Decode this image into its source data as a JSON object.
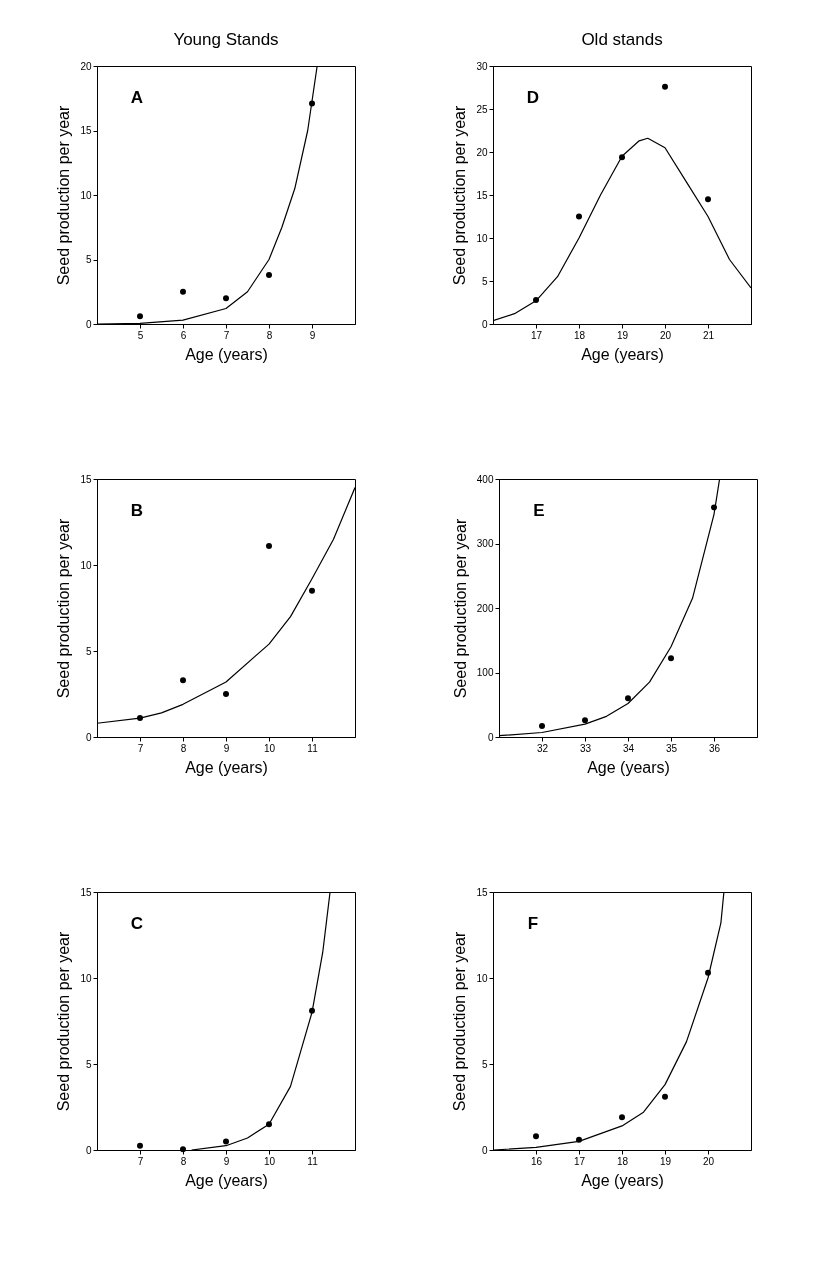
{
  "chart_data": [
    {
      "type": "scatter",
      "title": "Young Stands",
      "xlabel": "Age (years)",
      "ylabel": "Seed production per year",
      "annotations": [
        "A"
      ],
      "grid": false,
      "legend": false,
      "xlim": [
        4,
        10
      ],
      "xticks": [
        5,
        6,
        7,
        8,
        9
      ],
      "ylim": [
        0,
        20
      ],
      "yticks": [
        0,
        5,
        10,
        15,
        20
      ],
      "series": [
        {
          "color": "#000000",
          "marker": "circle",
          "x": [
            5,
            6,
            7,
            8,
            9
          ],
          "values": [
            0.6,
            2.5,
            2.0,
            3.8,
            17.1
          ]
        },
        {
          "type": "line",
          "color": "#000000",
          "x": [
            4,
            5,
            6,
            7,
            7.5,
            8,
            8.3,
            8.6,
            8.9,
            9.12
          ],
          "values": [
            0,
            0.05,
            0.3,
            1.2,
            2.5,
            5,
            7.5,
            10.5,
            15,
            20
          ]
        }
      ]
    },
    {
      "type": "scatter",
      "title": "Old stands",
      "xlabel": "Age (years)",
      "ylabel": "Seed production per year",
      "annotations": [
        "D"
      ],
      "grid": false,
      "legend": false,
      "xlim": [
        16,
        22
      ],
      "xticks": [
        17,
        18,
        19,
        20,
        21
      ],
      "ylim": [
        0,
        30
      ],
      "yticks": [
        0,
        5,
        10,
        15,
        20,
        25,
        30
      ],
      "series": [
        {
          "color": "#000000",
          "marker": "circle",
          "x": [
            17,
            18,
            19,
            20,
            21
          ],
          "values": [
            2.8,
            12.5,
            19.4,
            27.6,
            14.5
          ]
        },
        {
          "type": "line",
          "color": "#000000",
          "x": [
            16,
            16.5,
            17,
            17.5,
            18,
            18.5,
            19,
            19.4,
            19.6,
            20,
            20.5,
            21,
            21.5,
            22
          ],
          "values": [
            0.4,
            1.2,
            2.7,
            5.5,
            10,
            15,
            19.5,
            21.3,
            21.6,
            20.5,
            16.5,
            12.5,
            7.5,
            4.2
          ]
        }
      ]
    },
    {
      "type": "scatter",
      "xlabel": "Age (years)",
      "ylabel": "Seed production per year",
      "annotations": [
        "B"
      ],
      "grid": false,
      "legend": false,
      "xlim": [
        6,
        12
      ],
      "xticks": [
        7,
        8,
        9,
        10,
        11
      ],
      "ylim": [
        0,
        15
      ],
      "yticks": [
        0,
        5,
        10,
        15
      ],
      "series": [
        {
          "color": "#000000",
          "marker": "circle",
          "x": [
            7,
            8,
            9,
            10,
            11
          ],
          "values": [
            1.1,
            3.3,
            2.5,
            11.1,
            8.5
          ]
        },
        {
          "type": "line",
          "color": "#000000",
          "x": [
            6,
            7,
            7.5,
            8,
            9,
            10,
            10.5,
            11,
            11.5,
            12
          ],
          "values": [
            0.8,
            1.1,
            1.4,
            1.9,
            3.2,
            5.4,
            7,
            9.2,
            11.5,
            14.5
          ]
        }
      ]
    },
    {
      "type": "scatter",
      "xlabel": "Age (years)",
      "ylabel": "Seed production per year",
      "annotations": [
        "E"
      ],
      "grid": false,
      "legend": false,
      "xlim": [
        31,
        37
      ],
      "xticks": [
        32,
        33,
        34,
        35,
        36
      ],
      "ylim": [
        0,
        400
      ],
      "yticks": [
        0,
        100,
        200,
        300,
        400
      ],
      "series": [
        {
          "color": "#000000",
          "marker": "circle",
          "x": [
            32,
            33,
            34,
            35,
            36
          ],
          "values": [
            17,
            26,
            60,
            122,
            356
          ]
        },
        {
          "type": "line",
          "color": "#000000",
          "x": [
            31,
            32,
            33,
            33.5,
            34,
            34.5,
            35,
            35.5,
            36,
            36.13
          ],
          "values": [
            2,
            7,
            20,
            32,
            52,
            85,
            140,
            215,
            345,
            400
          ]
        }
      ]
    },
    {
      "type": "scatter",
      "xlabel": "Age (years)",
      "ylabel": "Seed production per year",
      "annotations": [
        "C"
      ],
      "grid": false,
      "legend": false,
      "xlim": [
        6,
        12
      ],
      "xticks": [
        7,
        8,
        9,
        10,
        11
      ],
      "ylim": [
        0,
        15
      ],
      "yticks": [
        0,
        5,
        10,
        15
      ],
      "series": [
        {
          "color": "#000000",
          "marker": "circle",
          "x": [
            7,
            8,
            9,
            10,
            11
          ],
          "values": [
            0.25,
            0.05,
            0.5,
            1.5,
            8.1
          ]
        },
        {
          "type": "line",
          "color": "#000000",
          "x": [
            8.2,
            9,
            9.5,
            10,
            10.5,
            11,
            11.25,
            11.42
          ],
          "values": [
            0,
            0.25,
            0.7,
            1.5,
            3.7,
            8,
            11.5,
            15
          ]
        }
      ]
    },
    {
      "type": "scatter",
      "xlabel": "Age (years)",
      "ylabel": "Seed production per year",
      "annotations": [
        "F"
      ],
      "grid": false,
      "legend": false,
      "xlim": [
        15,
        21
      ],
      "xticks": [
        16,
        17,
        18,
        19,
        20
      ],
      "ylim": [
        0,
        15
      ],
      "yticks": [
        0,
        5,
        10,
        15
      ],
      "series": [
        {
          "color": "#000000",
          "marker": "circle",
          "x": [
            16,
            17,
            18,
            19,
            20
          ],
          "values": [
            0.8,
            0.6,
            1.9,
            3.1,
            10.3
          ]
        },
        {
          "type": "line",
          "color": "#000000",
          "x": [
            15,
            16,
            17,
            18,
            18.5,
            19,
            19.5,
            20,
            20.3,
            20.37
          ],
          "values": [
            0,
            0.15,
            0.5,
            1.4,
            2.2,
            3.8,
            6.3,
            10,
            13.2,
            15
          ]
        }
      ]
    }
  ]
}
